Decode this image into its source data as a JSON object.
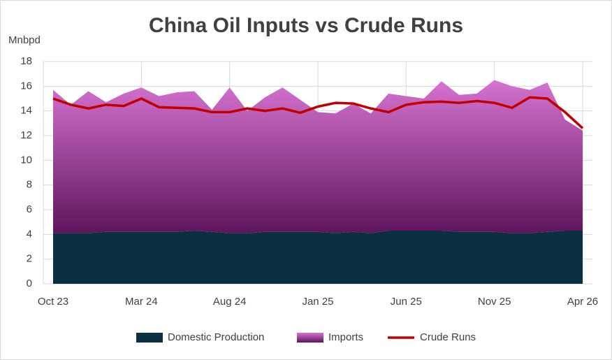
{
  "chart_data": {
    "type": "stacked-area-line",
    "title": "China Oil Inputs vs Crude Runs",
    "y_label": "Mnbpd",
    "categories": [
      "Oct 23",
      null,
      null,
      null,
      null,
      "Mar 24",
      null,
      null,
      null,
      null,
      "Aug 24",
      null,
      null,
      null,
      null,
      "Jan 25",
      null,
      null,
      null,
      null,
      "Jun 25",
      null,
      null,
      null,
      null,
      "Nov 25",
      null,
      null,
      null,
      null,
      "Apr 26"
    ],
    "series": [
      {
        "name": "Domestic Production",
        "kind": "area",
        "color": "#0b3042",
        "values": [
          4.1,
          4.1,
          4.1,
          4.2,
          4.2,
          4.2,
          4.2,
          4.2,
          4.3,
          4.2,
          4.1,
          4.1,
          4.2,
          4.2,
          4.2,
          4.2,
          4.1,
          4.2,
          4.1,
          4.3,
          4.3,
          4.3,
          4.3,
          4.2,
          4.2,
          4.2,
          4.1,
          4.1,
          4.2,
          4.3,
          4.3
        ]
      },
      {
        "name": "Imports",
        "kind": "area",
        "color": "#d673d1",
        "values": [
          11.6,
          10.4,
          11.5,
          10.5,
          11.2,
          11.7,
          11.0,
          11.3,
          11.3,
          9.9,
          11.8,
          9.9,
          10.9,
          11.7,
          10.7,
          9.7,
          9.7,
          10.4,
          9.7,
          11.1,
          10.9,
          10.7,
          12.1,
          11.1,
          11.2,
          12.3,
          11.9,
          11.6,
          12.1,
          9.0,
          8.1
        ]
      },
      {
        "name": "Crude Runs",
        "kind": "line",
        "color": "#c00000",
        "values": [
          15.0,
          14.5,
          14.2,
          14.5,
          14.4,
          15.0,
          14.3,
          14.25,
          14.2,
          13.9,
          13.9,
          14.2,
          14.0,
          14.2,
          13.85,
          14.35,
          14.65,
          14.6,
          14.2,
          13.9,
          14.5,
          14.7,
          14.75,
          14.65,
          14.8,
          14.65,
          14.25,
          15.1,
          15.0,
          13.9,
          12.6
        ]
      }
    ],
    "ylim": [
      0,
      18
    ],
    "yticks": [
      0,
      2,
      4,
      6,
      8,
      10,
      12,
      14,
      16,
      18
    ],
    "grid": true,
    "legend": "bottom"
  }
}
